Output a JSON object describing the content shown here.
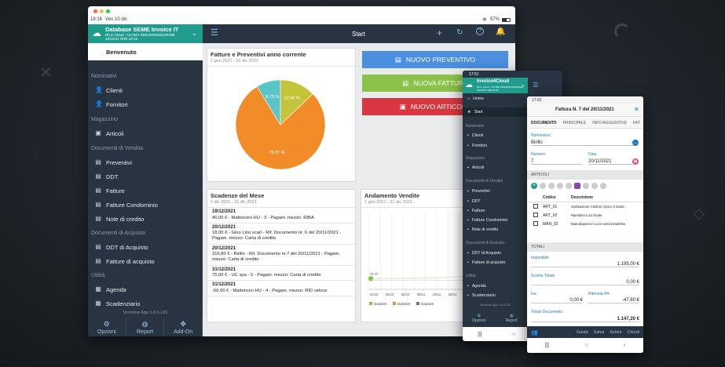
{
  "tablet": {
    "status_time": "18:16",
    "status_date": "Ven 10 dic",
    "battery": "57%",
    "db_title": "Database SEME Invoice IT",
    "db_sub1": "Db in Cloud - ULTIMA SINCRONIZZAZIONE",
    "db_sub2": "10/12/21 ORE 18:15",
    "welcome": "Benvenuto",
    "sections": {
      "nominativi": "Nominativi",
      "magazzino": "Magazzino",
      "vendita": "Documenti di Vendita",
      "acquisto": "Documenti di Acquisto",
      "utilita": "Utilità"
    },
    "items": {
      "clienti": "Clienti",
      "fornitori": "Fornitori",
      "articoli": "Articoli",
      "preventivi": "Preventivi",
      "ddt": "DDT",
      "fatture": "Fatture",
      "fatture_condominio": "Fatture Condominio",
      "note_credito": "Note di credito",
      "ddt_acquisto": "DDT di Acquisto",
      "fatture_acquisto": "Fatture di acquisto",
      "agenda": "Agenda",
      "scadenziario": "Scadenziario"
    },
    "version": "Versione App 1.8.0.126",
    "bottom": {
      "opzioni": "Opzioni",
      "report": "Report",
      "addon": "Add-On"
    },
    "header_title": "Start",
    "pie_card": {
      "title": "Fatture e Preventivi anno corrente",
      "subtitle": "1 gen 2021 - 31 dic 2021"
    },
    "buttons": {
      "preventivo": "NUOVO PREVENTIVO",
      "fattura": "NUOVA FATTURA",
      "articolo": "NUOVO ARTICOLO"
    },
    "scad_card": {
      "title": "Scadenze del Mese",
      "subtitle": "1 dic 2021 - 31 dic 2021",
      "rows": [
        {
          "date": "19/12/2021",
          "text": "40,00 € - Mattoncini HU - 3 - Pagam. mezzo:  RIBA"
        },
        {
          "date": "20/12/2021",
          "text": "18,00 € - Gino Lino scarl - Rif. Documento nr. 6 del 20/11/2021 - Pagam. mezzo:  Carta di credito"
        },
        {
          "date": "20/12/2021",
          "text": "316,80 € - Birillo - Rif. Documento nr.7 del 20/11/2021 - Pagam. mezzo:  Carta di credito"
        },
        {
          "date": "31/12/2021",
          "text": "75,00 € - UC spa - 5 - Pagam. mezzo:  Carta di credito"
        },
        {
          "date": "31/12/2021",
          "text": "-50,00 € - Mattoncini HU - 4 - Pagam. mezzo:  RID veloce"
        }
      ]
    },
    "sales_card": {
      "title": "Andamento Vendite",
      "subtitle": "1 gen 2021 - 31 dic 2021"
    }
  },
  "chart_data": [
    {
      "type": "pie",
      "values": [
        78.37,
        12.9,
        8.73
      ],
      "labels": [
        "78,37 %",
        "12,90 %",
        "8,73 %"
      ],
      "colors": [
        "#f28c28",
        "#c4c43a",
        "#5bc4c6"
      ]
    },
    {
      "type": "line",
      "categories": [
        "10/10",
        "20/10",
        "30/10",
        "09/11",
        "19/11",
        "29/11",
        "09/12",
        "19/12",
        "29/12"
      ],
      "annotations": [
        "-50,00"
      ],
      "legend": [
        "DataSet",
        "DataSet",
        "DataSet"
      ],
      "legend_colors": [
        "#8bc34a",
        "#f28c28",
        "#5a7ea8"
      ]
    }
  ],
  "phone1": {
    "time": "17:51",
    "title": "Invoice4Cloud",
    "sub1": "Db in Cloud - ULTIMA SINCRONIZZAZIONE",
    "sub2": "10/12/21 ORE 18:00",
    "home": "Home",
    "start": "Start",
    "version": "Versione App 1.8.0.211",
    "bottom": {
      "opzioni": "Opzioni",
      "report": "Report"
    }
  },
  "phone2": {
    "time": "17:52",
    "title": "Fattura N. 7 del 20/11/2021",
    "tabs": [
      "DOCUMENTO",
      "PRINCIPALE",
      "INFO AGGIUNTIVE",
      "FAT"
    ],
    "nominativo_label": "Nominativo",
    "nominativo": "Birillo",
    "numero_label": "Numero",
    "numero": "7",
    "data_label": "Data",
    "data": "20/11/2021",
    "articoli": "ARTICOLI",
    "col_codice": "Codice",
    "col_descrizione": "Descrizione",
    "rows": [
      {
        "code": "ART_01",
        "desc": "Sostituzione Citofoni Civico 9 Scala"
      },
      {
        "code": "ART_02",
        "desc": "Ripristino Luci Scala"
      },
      {
        "code": "MAN_02",
        "desc": "Manodopera in Loco senza trasferta"
      }
    ],
    "totali": "TOTALI",
    "imponibile_label": "Imponibile",
    "imponibile": "1.195,00 €",
    "sconto_label": "Sconto Totale",
    "sconto": "0,00 €",
    "iva_label": "Iva",
    "iva": "0,00 €",
    "ritenuta_label": "Ritenuta 4%",
    "ritenuta": "-47,80 €",
    "totale_label": "Totale Documento",
    "totale": "1.147,20 €",
    "actions": [
      "Guida",
      "Salva",
      "Azioni",
      "Chiudi"
    ]
  }
}
